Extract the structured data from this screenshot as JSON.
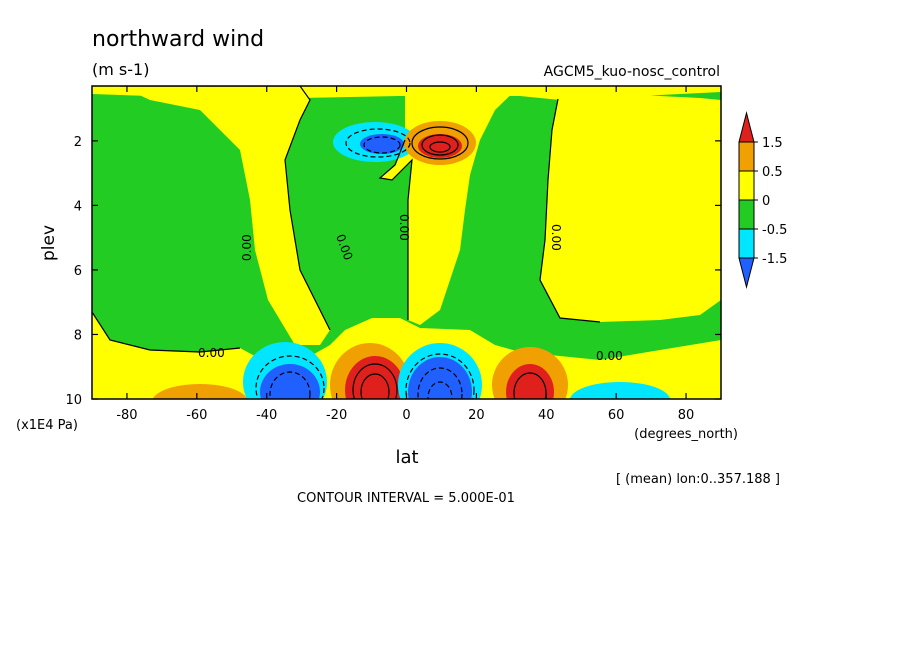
{
  "chart_data": {
    "type": "heatmap",
    "title": "northward wind",
    "units": "(m s-1)",
    "dataset": "AGCM5_kuo-nosc_control",
    "xlabel": "lat",
    "xunits": "(degrees_north)",
    "ylabel": "plev",
    "yunits": "(x1E4 Pa)",
    "xlim": [
      -90,
      90
    ],
    "ylim": [
      10,
      0.3
    ],
    "xticks": [
      "-80",
      "-60",
      "-40",
      "-20",
      "0",
      "20",
      "40",
      "60",
      "80"
    ],
    "yticks": [
      "2",
      "4",
      "6",
      "8",
      "10"
    ],
    "levels": [
      {
        "label": "1.5",
        "color": "#e0201c"
      },
      {
        "label": "0.5",
        "color": "#f0a000"
      },
      {
        "label": "0",
        "color": "#ffff00"
      },
      {
        "label": "-0.5",
        "color": "#22cc22"
      },
      {
        "label": "-1.5",
        "color": "#00e6ff"
      }
    ],
    "legend_end_colors": {
      "top": "#e0201c",
      "bottom": "#2060ff"
    },
    "contour_labels": [
      "0.00",
      "0.00",
      "0.00",
      "0.00",
      "0.00",
      "0.00"
    ],
    "mean_info": "[ (mean) lon:0..357.188 ]",
    "contour_interval": "CONTOUR INTERVAL = 5.000E-01"
  }
}
